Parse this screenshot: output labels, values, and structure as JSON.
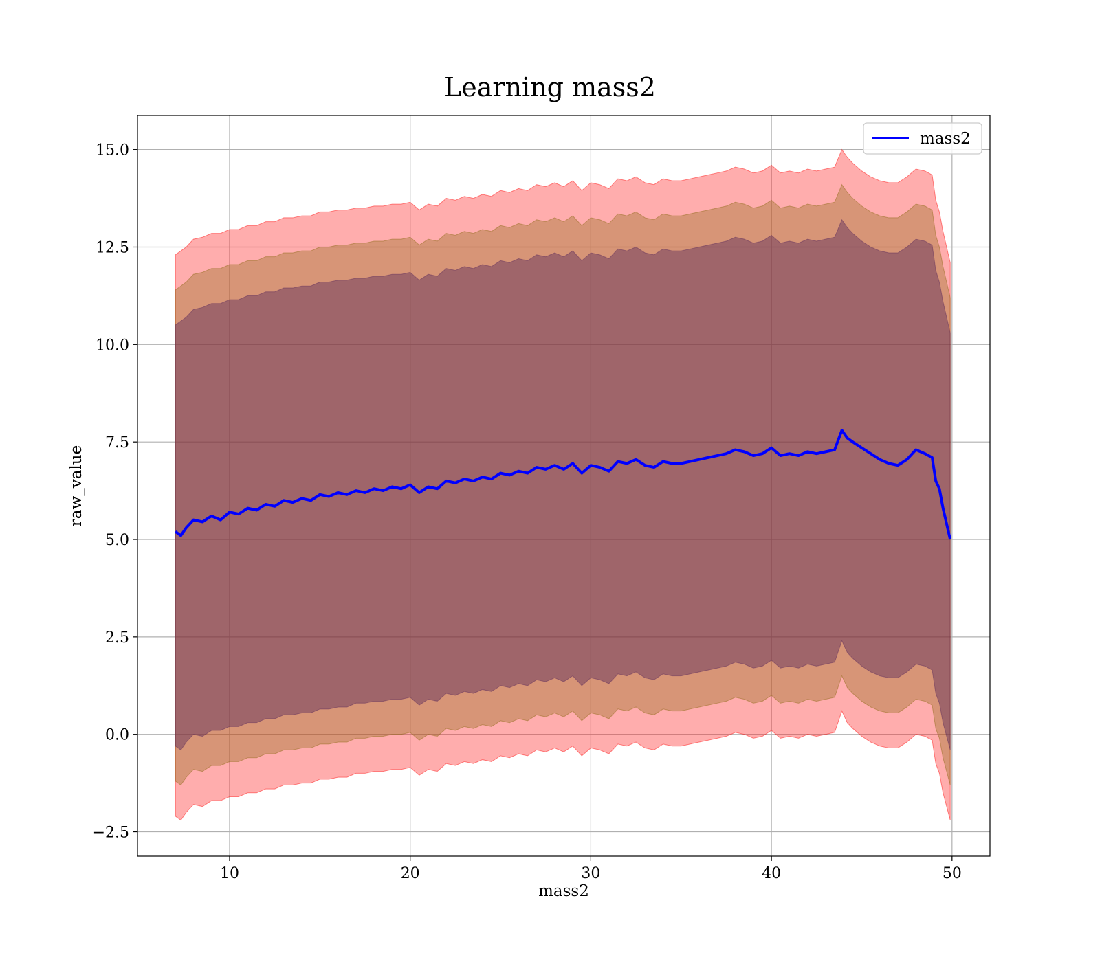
{
  "chart_data": {
    "type": "line",
    "title": "Learning mass2",
    "xlabel": "mass2",
    "ylabel": "raw_value",
    "xlim": [
      4.9,
      52.1
    ],
    "ylim": [
      -3.125,
      15.875
    ],
    "xticks": [
      10,
      20,
      30,
      40,
      50
    ],
    "xtick_labels": [
      "10",
      "20",
      "30",
      "40",
      "50"
    ],
    "yticks": [
      -2.5,
      0.0,
      2.5,
      5.0,
      7.5,
      10.0,
      12.5,
      15.0
    ],
    "ytick_labels": [
      "−2.5",
      "0.0",
      "2.5",
      "5.0",
      "7.5",
      "10.0",
      "12.5",
      "15.0"
    ],
    "grid": true,
    "legend_position": "top-right",
    "colors": {
      "line": "#0000ff",
      "band_outer": "#ff0000",
      "band_middle": "#8b6914",
      "band_inner": "#5c2a5c",
      "grid": "#b0b0b0"
    },
    "series": [
      {
        "name": "mass2",
        "x": [
          7.0,
          7.3,
          7.6,
          8.0,
          8.5,
          9.0,
          9.5,
          10.0,
          10.5,
          11.0,
          11.5,
          12.0,
          12.5,
          13.0,
          13.5,
          14.0,
          14.5,
          15.0,
          15.5,
          16.0,
          16.5,
          17.0,
          17.5,
          18.0,
          18.5,
          19.0,
          19.5,
          20.0,
          20.5,
          21.0,
          21.5,
          22.0,
          22.5,
          23.0,
          23.5,
          24.0,
          24.5,
          25.0,
          25.5,
          26.0,
          26.5,
          27.0,
          27.5,
          28.0,
          28.5,
          29.0,
          29.5,
          30.0,
          30.5,
          31.0,
          31.5,
          32.0,
          32.5,
          33.0,
          33.5,
          34.0,
          34.5,
          35.0,
          35.5,
          36.0,
          36.5,
          37.0,
          37.5,
          38.0,
          38.5,
          39.0,
          39.5,
          40.0,
          40.5,
          41.0,
          41.5,
          42.0,
          42.5,
          43.0,
          43.5,
          43.9,
          44.2,
          44.5,
          45.0,
          45.5,
          46.0,
          46.5,
          47.0,
          47.5,
          48.0,
          48.5,
          48.9,
          49.1,
          49.3,
          49.5,
          49.9
        ],
        "mean": [
          5.2,
          5.1,
          5.3,
          5.5,
          5.45,
          5.6,
          5.5,
          5.7,
          5.65,
          5.8,
          5.75,
          5.9,
          5.85,
          6.0,
          5.95,
          6.05,
          6.0,
          6.15,
          6.1,
          6.2,
          6.15,
          6.25,
          6.2,
          6.3,
          6.25,
          6.35,
          6.3,
          6.4,
          6.2,
          6.35,
          6.3,
          6.5,
          6.45,
          6.55,
          6.5,
          6.6,
          6.55,
          6.7,
          6.65,
          6.75,
          6.7,
          6.85,
          6.8,
          6.9,
          6.8,
          6.95,
          6.7,
          6.9,
          6.85,
          6.75,
          7.0,
          6.95,
          7.05,
          6.9,
          6.85,
          7.0,
          6.95,
          6.95,
          7.0,
          7.05,
          7.1,
          7.15,
          7.2,
          7.3,
          7.25,
          7.15,
          7.2,
          7.35,
          7.15,
          7.2,
          7.15,
          7.25,
          7.2,
          7.25,
          7.3,
          7.8,
          7.6,
          7.5,
          7.35,
          7.2,
          7.05,
          6.95,
          6.9,
          7.05,
          7.3,
          7.2,
          7.1,
          6.5,
          6.3,
          5.8,
          5.0
        ],
        "bands": [
          {
            "lower": [
              -2.1,
              -2.2,
              -2.0,
              -1.8,
              -1.85,
              -1.7,
              -1.7,
              -1.6,
              -1.6,
              -1.5,
              -1.5,
              -1.4,
              -1.4,
              -1.3,
              -1.3,
              -1.25,
              -1.25,
              -1.15,
              -1.15,
              -1.1,
              -1.1,
              -1.0,
              -1.0,
              -0.95,
              -0.95,
              -0.9,
              -0.9,
              -0.85,
              -1.05,
              -0.9,
              -0.95,
              -0.75,
              -0.8,
              -0.7,
              -0.75,
              -0.65,
              -0.7,
              -0.55,
              -0.6,
              -0.5,
              -0.55,
              -0.4,
              -0.45,
              -0.35,
              -0.45,
              -0.3,
              -0.55,
              -0.35,
              -0.4,
              -0.5,
              -0.25,
              -0.3,
              -0.2,
              -0.35,
              -0.4,
              -0.25,
              -0.3,
              -0.3,
              -0.25,
              -0.2,
              -0.15,
              -0.1,
              -0.05,
              0.05,
              0.0,
              -0.1,
              -0.05,
              0.1,
              -0.1,
              -0.05,
              -0.1,
              0.0,
              -0.05,
              0.0,
              0.05,
              0.6,
              0.3,
              0.15,
              -0.05,
              -0.2,
              -0.3,
              -0.35,
              -0.35,
              -0.2,
              0.0,
              -0.05,
              -0.15,
              -0.75,
              -1.0,
              -1.5,
              -2.2
            ],
            "upper": [
              12.3,
              12.4,
              12.5,
              12.7,
              12.75,
              12.85,
              12.85,
              12.95,
              12.95,
              13.05,
              13.05,
              13.15,
              13.15,
              13.25,
              13.25,
              13.3,
              13.3,
              13.4,
              13.4,
              13.45,
              13.45,
              13.5,
              13.5,
              13.55,
              13.55,
              13.6,
              13.6,
              13.65,
              13.45,
              13.6,
              13.55,
              13.75,
              13.7,
              13.8,
              13.75,
              13.85,
              13.8,
              13.95,
              13.9,
              14.0,
              13.95,
              14.1,
              14.05,
              14.15,
              14.05,
              14.2,
              13.95,
              14.15,
              14.1,
              14.0,
              14.25,
              14.2,
              14.3,
              14.15,
              14.1,
              14.25,
              14.2,
              14.2,
              14.25,
              14.3,
              14.35,
              14.4,
              14.45,
              14.55,
              14.5,
              14.4,
              14.45,
              14.6,
              14.4,
              14.45,
              14.4,
              14.5,
              14.45,
              14.5,
              14.55,
              15.0,
              14.8,
              14.65,
              14.45,
              14.3,
              14.2,
              14.15,
              14.15,
              14.3,
              14.5,
              14.45,
              14.35,
              13.7,
              13.4,
              12.9,
              12.1
            ]
          },
          {
            "lower": [
              -1.2,
              -1.3,
              -1.1,
              -0.9,
              -0.95,
              -0.8,
              -0.8,
              -0.7,
              -0.7,
              -0.6,
              -0.6,
              -0.5,
              -0.5,
              -0.4,
              -0.4,
              -0.35,
              -0.35,
              -0.25,
              -0.25,
              -0.2,
              -0.2,
              -0.1,
              -0.1,
              -0.05,
              -0.05,
              0.0,
              0.0,
              0.05,
              -0.15,
              0.0,
              -0.05,
              0.15,
              0.1,
              0.2,
              0.15,
              0.25,
              0.2,
              0.35,
              0.3,
              0.4,
              0.35,
              0.5,
              0.45,
              0.55,
              0.45,
              0.6,
              0.35,
              0.55,
              0.5,
              0.4,
              0.65,
              0.6,
              0.7,
              0.55,
              0.5,
              0.65,
              0.6,
              0.6,
              0.65,
              0.7,
              0.75,
              0.8,
              0.85,
              0.95,
              0.9,
              0.8,
              0.85,
              1.0,
              0.8,
              0.85,
              0.8,
              0.9,
              0.85,
              0.9,
              0.95,
              1.5,
              1.2,
              1.05,
              0.85,
              0.7,
              0.6,
              0.55,
              0.55,
              0.7,
              0.9,
              0.85,
              0.75,
              0.15,
              -0.1,
              -0.6,
              -1.3
            ],
            "upper": [
              11.4,
              11.5,
              11.6,
              11.8,
              11.85,
              11.95,
              11.95,
              12.05,
              12.05,
              12.15,
              12.15,
              12.25,
              12.25,
              12.35,
              12.35,
              12.4,
              12.4,
              12.5,
              12.5,
              12.55,
              12.55,
              12.6,
              12.6,
              12.65,
              12.65,
              12.7,
              12.7,
              12.75,
              12.55,
              12.7,
              12.65,
              12.85,
              12.8,
              12.9,
              12.85,
              12.95,
              12.9,
              13.05,
              13.0,
              13.1,
              13.05,
              13.2,
              13.15,
              13.25,
              13.15,
              13.3,
              13.05,
              13.25,
              13.2,
              13.1,
              13.35,
              13.3,
              13.4,
              13.25,
              13.2,
              13.35,
              13.3,
              13.3,
              13.35,
              13.4,
              13.45,
              13.5,
              13.55,
              13.65,
              13.6,
              13.5,
              13.55,
              13.7,
              13.5,
              13.55,
              13.5,
              13.6,
              13.55,
              13.6,
              13.65,
              14.1,
              13.9,
              13.75,
              13.55,
              13.4,
              13.3,
              13.25,
              13.25,
              13.4,
              13.6,
              13.55,
              13.45,
              12.8,
              12.5,
              12.0,
              11.2
            ]
          },
          {
            "lower": [
              -0.3,
              -0.4,
              -0.2,
              0.0,
              -0.05,
              0.1,
              0.1,
              0.2,
              0.2,
              0.3,
              0.3,
              0.4,
              0.4,
              0.5,
              0.5,
              0.55,
              0.55,
              0.65,
              0.65,
              0.7,
              0.7,
              0.8,
              0.8,
              0.85,
              0.85,
              0.9,
              0.9,
              0.95,
              0.75,
              0.9,
              0.85,
              1.05,
              1.0,
              1.1,
              1.05,
              1.15,
              1.1,
              1.25,
              1.2,
              1.3,
              1.25,
              1.4,
              1.35,
              1.45,
              1.35,
              1.5,
              1.25,
              1.45,
              1.4,
              1.3,
              1.55,
              1.5,
              1.6,
              1.45,
              1.4,
              1.55,
              1.5,
              1.5,
              1.55,
              1.6,
              1.65,
              1.7,
              1.75,
              1.85,
              1.8,
              1.7,
              1.75,
              1.9,
              1.7,
              1.75,
              1.7,
              1.8,
              1.75,
              1.8,
              1.85,
              2.4,
              2.1,
              1.95,
              1.75,
              1.6,
              1.5,
              1.45,
              1.45,
              1.6,
              1.8,
              1.75,
              1.65,
              1.05,
              0.8,
              0.3,
              -0.4
            ],
            "upper": [
              10.5,
              10.6,
              10.7,
              10.9,
              10.95,
              11.05,
              11.05,
              11.15,
              11.15,
              11.25,
              11.25,
              11.35,
              11.35,
              11.45,
              11.45,
              11.5,
              11.5,
              11.6,
              11.6,
              11.65,
              11.65,
              11.7,
              11.7,
              11.75,
              11.75,
              11.8,
              11.8,
              11.85,
              11.65,
              11.8,
              11.75,
              11.95,
              11.9,
              12.0,
              11.95,
              12.05,
              12.0,
              12.15,
              12.1,
              12.2,
              12.15,
              12.3,
              12.25,
              12.35,
              12.25,
              12.4,
              12.15,
              12.35,
              12.3,
              12.2,
              12.45,
              12.4,
              12.5,
              12.35,
              12.3,
              12.45,
              12.4,
              12.4,
              12.45,
              12.5,
              12.55,
              12.6,
              12.65,
              12.75,
              12.7,
              12.6,
              12.65,
              12.8,
              12.6,
              12.65,
              12.6,
              12.7,
              12.65,
              12.7,
              12.75,
              13.2,
              13.0,
              12.85,
              12.65,
              12.5,
              12.4,
              12.35,
              12.35,
              12.5,
              12.7,
              12.65,
              12.55,
              11.9,
              11.6,
              11.1,
              10.3
            ]
          }
        ]
      }
    ]
  }
}
